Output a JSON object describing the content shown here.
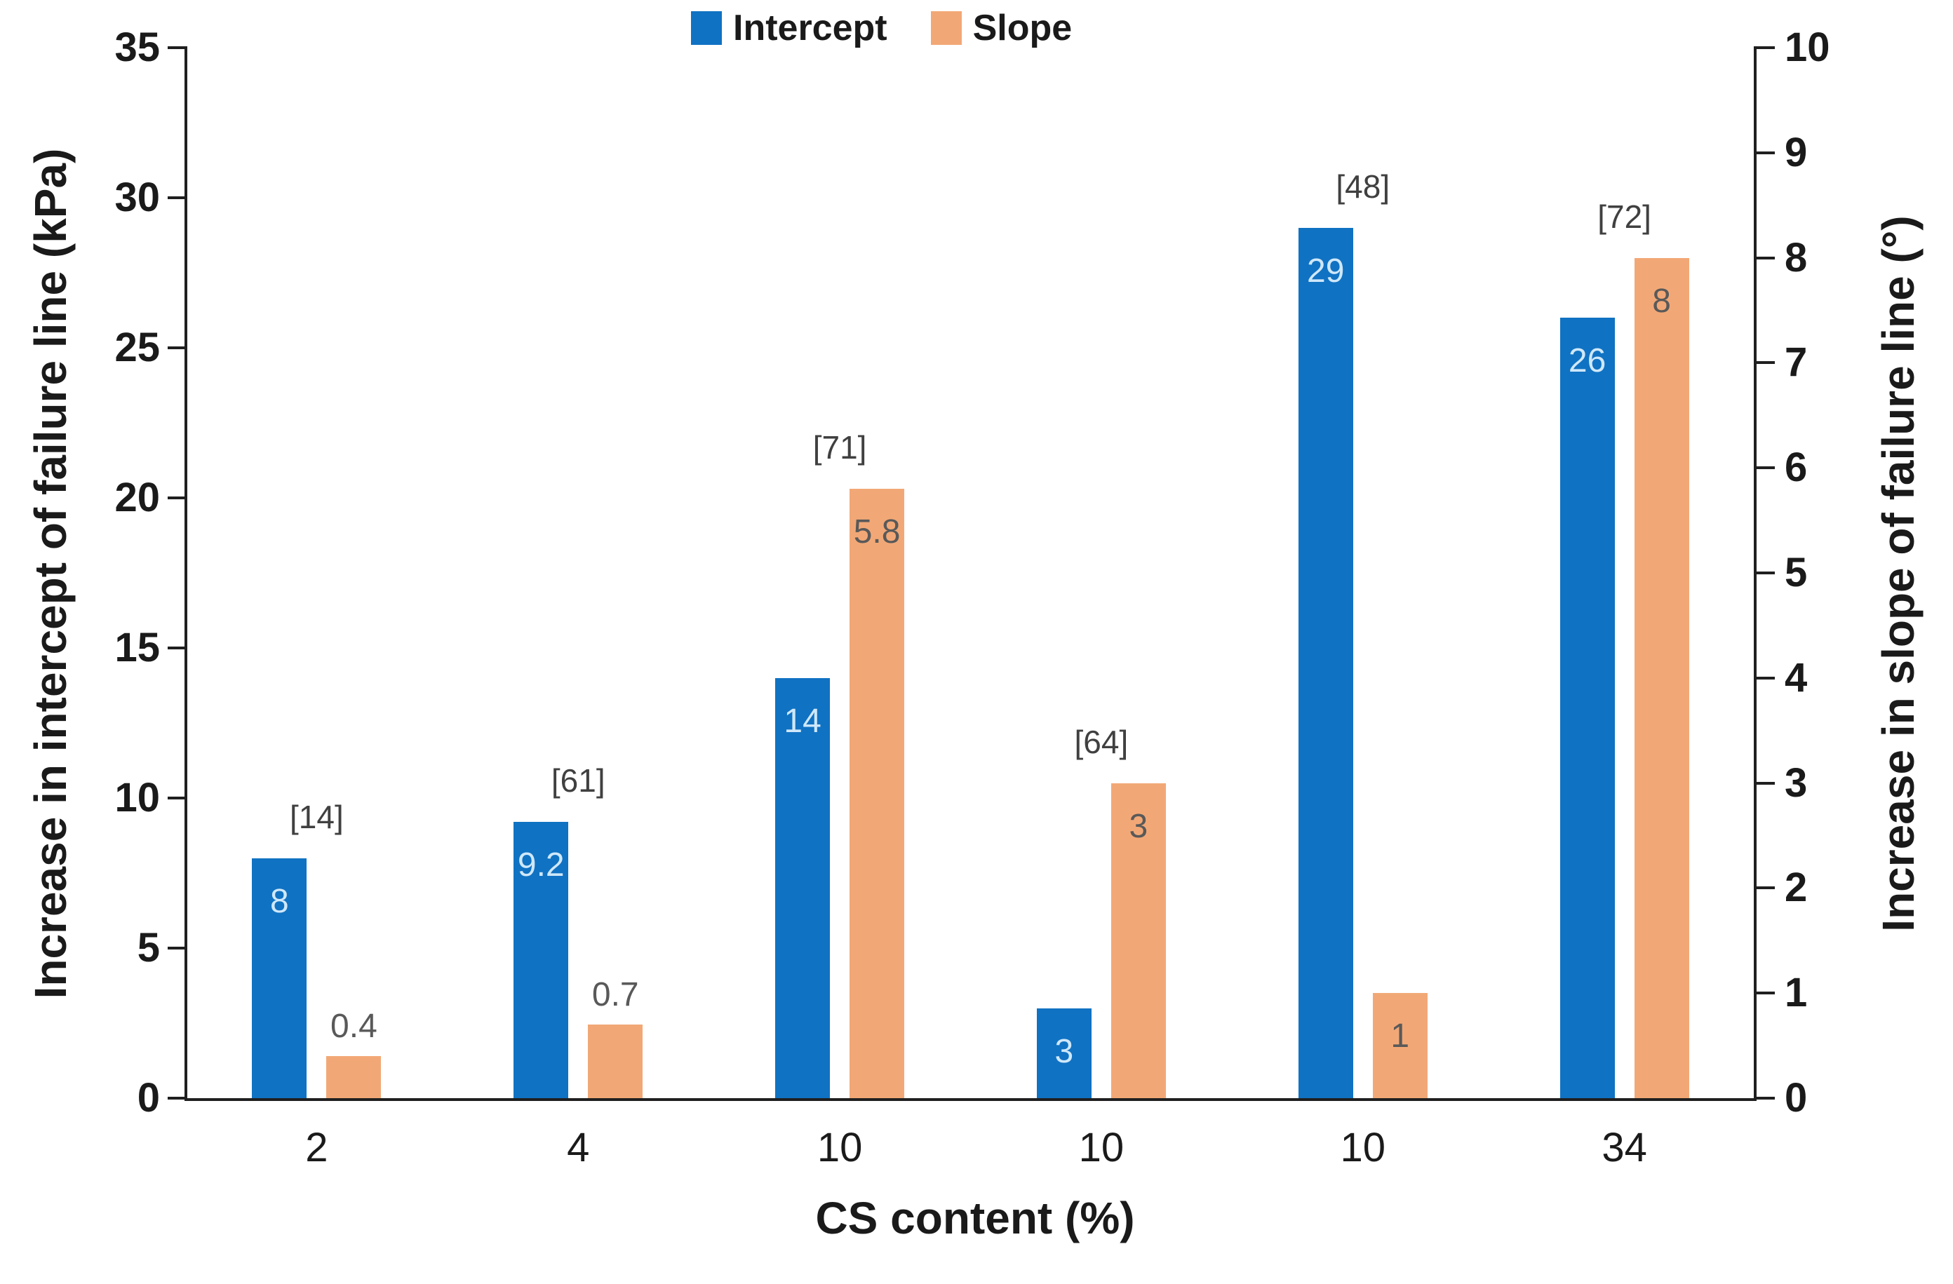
{
  "chart_data": {
    "type": "bar",
    "title": "",
    "xlabel": "CS content (%)",
    "ylabel_left": "Increase in intercept of failure line (kPa)",
    "ylabel_right": "Increase in slope of failure line (°)",
    "categories": [
      "2",
      "4",
      "10",
      "10",
      "10",
      "34"
    ],
    "ylim_left": [
      0,
      35
    ],
    "ylim_right": [
      0,
      10
    ],
    "yticks_left": [
      0,
      5,
      10,
      15,
      20,
      25,
      30,
      35
    ],
    "yticks_right": [
      0,
      1,
      2,
      3,
      4,
      5,
      6,
      7,
      8,
      9,
      10
    ],
    "grid": false,
    "legend_position": "top",
    "series": [
      {
        "name": "Intercept",
        "axis": "left",
        "color": "#1072c2",
        "label_color": "#cfe8fa",
        "values": [
          8,
          9.2,
          14,
          3,
          29,
          26
        ],
        "value_labels": [
          "8",
          "9.2",
          "14",
          "3",
          "29",
          "26"
        ],
        "label_placement": [
          "inside",
          "inside",
          "inside",
          "inside",
          "inside",
          "inside"
        ]
      },
      {
        "name": "Slope",
        "axis": "right",
        "color": "#f2a876",
        "label_color": "#595959",
        "values": [
          0.4,
          0.7,
          5.8,
          3,
          1,
          8
        ],
        "value_labels": [
          "0.4",
          "0.7",
          "5.8",
          "3",
          "1",
          "8"
        ],
        "label_placement": [
          "above",
          "above",
          "inside",
          "inside",
          "inside",
          "inside"
        ]
      }
    ],
    "reference_labels": [
      "[14]",
      "[61]",
      "[71]",
      "[64]",
      "[48]",
      "[72]"
    ]
  },
  "colors": {
    "axis": "#1f1f1f",
    "tick_text": "#1a1a1a",
    "reference_text": "#404040",
    "background": "#ffffff"
  }
}
